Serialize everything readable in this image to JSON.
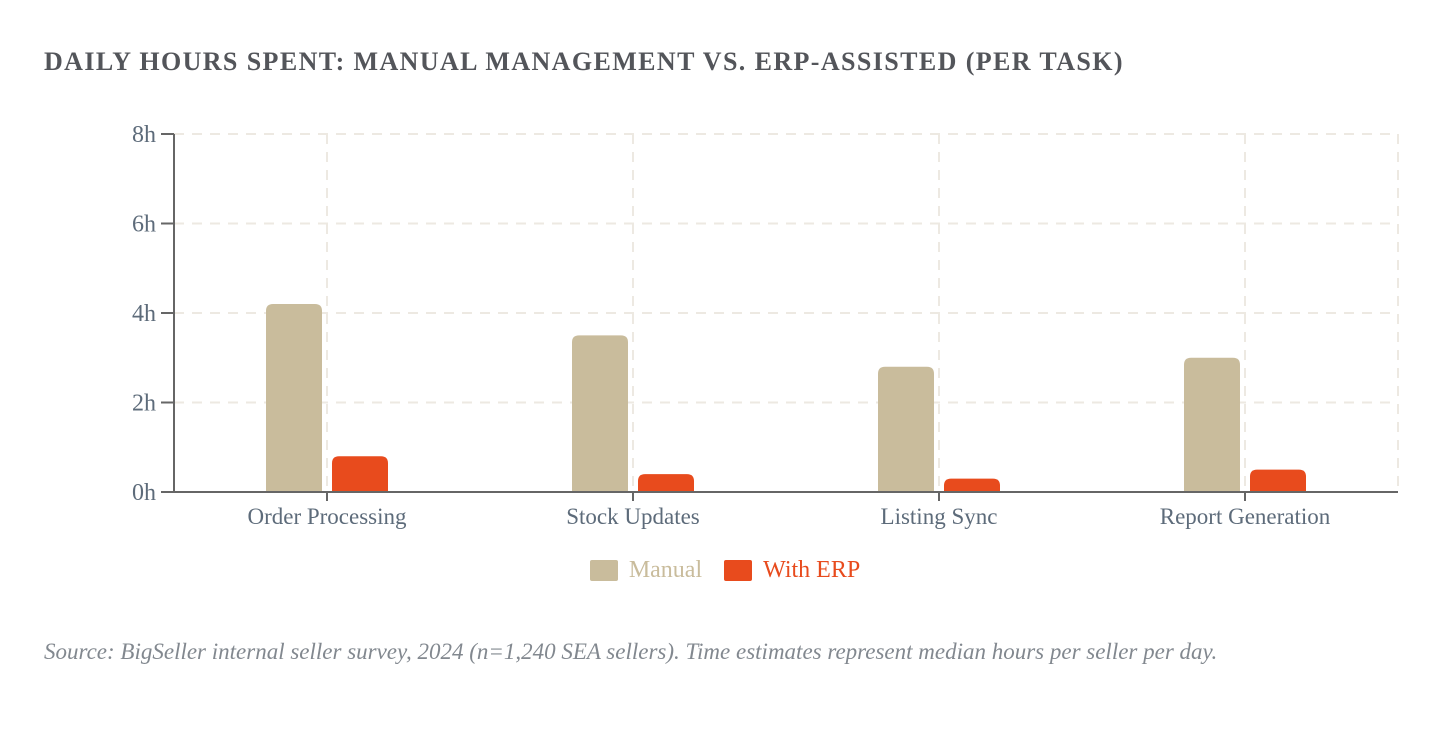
{
  "title": "DAILY HOURS SPENT: MANUAL MANAGEMENT VS. ERP-ASSISTED (PER TASK)",
  "source_note": "Source: BigSeller internal seller survey, 2024 (n=1,240 SEA sellers). Time estimates represent median hours per seller per day.",
  "legend": {
    "items": [
      {
        "label": "Manual",
        "color": "#C9BC9C"
      },
      {
        "label": "With ERP",
        "color": "#E84B1D"
      }
    ]
  },
  "chart_data": {
    "type": "bar",
    "title": "DAILY HOURS SPENT: MANUAL MANAGEMENT VS. ERP-ASSISTED (PER TASK)",
    "categories": [
      "Order Processing",
      "Stock Updates",
      "Listing Sync",
      "Report Generation"
    ],
    "series": [
      {
        "name": "Manual",
        "color": "#C9BC9C",
        "values": [
          4.2,
          3.5,
          2.8,
          3.0
        ]
      },
      {
        "name": "With ERP",
        "color": "#E84B1D",
        "values": [
          0.8,
          0.4,
          0.3,
          0.5
        ]
      }
    ],
    "unit": "hours per day",
    "xlabel": "",
    "ylabel": "",
    "ylim": [
      0,
      8
    ],
    "yticks": [
      0,
      2,
      4,
      6,
      8
    ],
    "ytick_labels": [
      "0h",
      "2h",
      "4h",
      "6h",
      "8h"
    ],
    "grid": true,
    "gridline_style": "dashed",
    "legend_position": "bottom"
  },
  "colors": {
    "background": "#FFFFFF",
    "title_text": "#53555A",
    "axis_line": "#666666",
    "axis_label": "#5D6B7A",
    "gridline": "#EDE9E2",
    "source_text": "#82888F"
  }
}
